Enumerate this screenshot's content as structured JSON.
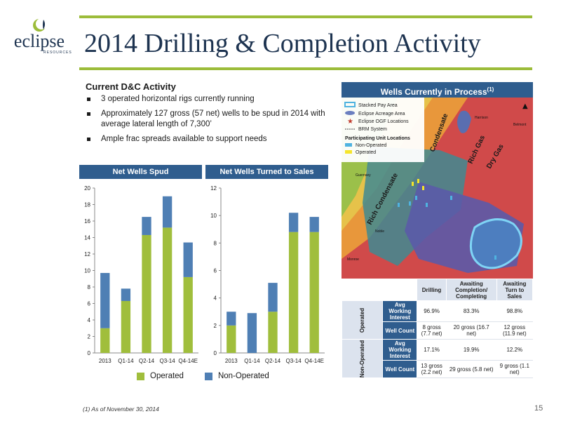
{
  "logo": {
    "word": "eclipse",
    "sub": "RESOURCES"
  },
  "header": {
    "title": "2014 Drilling & Completion Activity"
  },
  "activity": {
    "heading": "Current D&C Activity",
    "bullets": [
      "3 operated horizontal rigs currently running",
      "Approximately 127 gross (57 net) wells to be spud in 2014 with average lateral length of 7,300’",
      "Ample frac spreads available to support needs"
    ]
  },
  "colors": {
    "operated": "#a0be3c",
    "non_operated": "#4f7fb4",
    "header_blue": "#2f5d8e",
    "rule_green": "#9cbc3a"
  },
  "chart_data": [
    {
      "type": "bar",
      "stacked": true,
      "title": "Net Wells Spud",
      "categories": [
        "2013",
        "Q1-14",
        "Q2-14",
        "Q3-14",
        "Q4-14E"
      ],
      "series": [
        {
          "name": "Operated",
          "values": [
            3.0,
            6.3,
            14.3,
            15.2,
            9.2
          ]
        },
        {
          "name": "Non-Operated",
          "values": [
            6.7,
            1.5,
            2.2,
            3.8,
            4.2
          ]
        }
      ],
      "yticks": [
        "0",
        "2",
        "4",
        "6",
        "8",
        "10",
        "12",
        "14",
        "16",
        "18",
        "20"
      ],
      "ylim": [
        0,
        20
      ],
      "grid": false
    },
    {
      "type": "bar",
      "stacked": true,
      "title": "Net Wells Turned to Sales",
      "categories": [
        "2013",
        "Q1-14",
        "Q2-14",
        "Q3-14",
        "Q4-14E"
      ],
      "series": [
        {
          "name": "Operated",
          "values": [
            2.0,
            0.0,
            3.0,
            8.8,
            8.8
          ]
        },
        {
          "name": "Non-Operated",
          "values": [
            1.0,
            2.9,
            2.1,
            1.4,
            1.1
          ]
        }
      ],
      "yticks": [
        "0",
        "2",
        "4",
        "6",
        "8",
        "10",
        "12"
      ],
      "ylim": [
        0,
        12
      ],
      "grid": false
    }
  ],
  "legend": {
    "operated": "Operated",
    "non_operated": "Non-Operated"
  },
  "map": {
    "title": "Wells Currently in Process",
    "title_sup": "(1)",
    "legend_items": [
      "Stacked Pay Area",
      "Eclipse Acreage Area",
      "Eclipse OGF Locations",
      "BRM System"
    ],
    "participating_heading": "Participating Unit Locations",
    "participating_items": [
      "Non-Operated",
      "Operated"
    ],
    "zone_labels": [
      "Condensate",
      "Rich Gas",
      "Dry Gas",
      "Rich Condensate"
    ],
    "county_labels": [
      "Guernsey",
      "Noble",
      "Monroe",
      "Harrison",
      "Belmont"
    ]
  },
  "table": {
    "columns": [
      "Drilling",
      "Awaiting Completion/ Completing",
      "Awaiting Turn to Sales"
    ],
    "groups": [
      {
        "name": "Operated",
        "rows": [
          {
            "label": "Avg Working Interest",
            "values": [
              "96.9%",
              "83.3%",
              "98.8%"
            ]
          },
          {
            "label": "Well Count",
            "values": [
              "8 gross (7.7 net)",
              "20 gross (16.7 net)",
              "12 gross (11.9 net)"
            ]
          }
        ]
      },
      {
        "name": "Non-Operated",
        "rows": [
          {
            "label": "Avg Working Interest",
            "values": [
              "17.1%",
              "19.9%",
              "12.2%"
            ]
          },
          {
            "label": "Well Count",
            "values": [
              "13 gross (2.2 net)",
              "29 gross (5.8 net)",
              "9 gross (1.1 net)"
            ]
          }
        ]
      }
    ]
  },
  "footnote": "(1)    As of November 30, 2014",
  "page_number": "15"
}
